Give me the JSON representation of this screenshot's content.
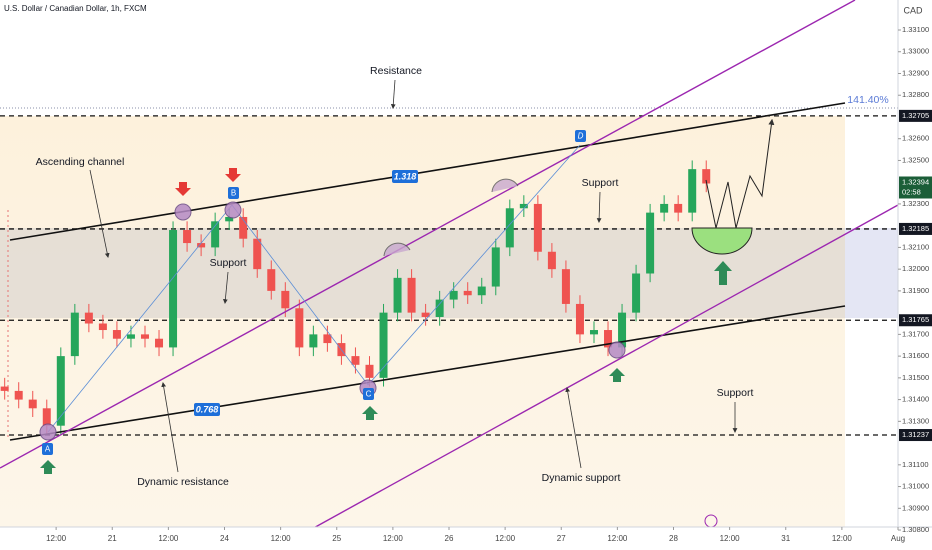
{
  "chart_data": {
    "type": "candlestick",
    "title": "U.S. Dollar / Canadian Dollar, 1h, FXCM",
    "currency": "CAD",
    "up_color": "#26a65b",
    "down_color": "#ef5350",
    "grid": false,
    "xlim": [
      0,
      192
    ],
    "xticks": [
      {
        "value": 12,
        "label": "12:00"
      },
      {
        "value": 24,
        "label": "21"
      },
      {
        "value": 36,
        "label": "12:00"
      },
      {
        "value": 48,
        "label": "24"
      },
      {
        "value": 60,
        "label": "12:00"
      },
      {
        "value": 72,
        "label": "25"
      },
      {
        "value": 84,
        "label": "12:00"
      },
      {
        "value": 96,
        "label": "26"
      },
      {
        "value": 108,
        "label": "12:00"
      },
      {
        "value": 120,
        "label": "27"
      },
      {
        "value": 132,
        "label": "12:00"
      },
      {
        "value": 144,
        "label": "28"
      },
      {
        "value": 156,
        "label": "12:00"
      },
      {
        "value": 168,
        "label": "31"
      },
      {
        "value": 180,
        "label": "12:00"
      },
      {
        "value": 192,
        "label": "Aug"
      }
    ],
    "ylim": [
      1.30814,
      1.33238
    ],
    "yticks": [
      {
        "value": 1.331,
        "label": "1.33100"
      },
      {
        "value": 1.33,
        "label": "1.33000"
      },
      {
        "value": 1.329,
        "label": "1.32900"
      },
      {
        "value": 1.328,
        "label": "1.32800"
      },
      {
        "value": 1.326,
        "label": "1.32600"
      },
      {
        "value": 1.325,
        "label": "1.32500"
      },
      {
        "value": 1.323,
        "label": "1.32300"
      },
      {
        "value": 1.321,
        "label": "1.32100"
      },
      {
        "value": 1.32,
        "label": "1.32000"
      },
      {
        "value": 1.319,
        "label": "1.31900"
      },
      {
        "value": 1.317,
        "label": "1.31700"
      },
      {
        "value": 1.316,
        "label": "1.31600"
      },
      {
        "value": 1.315,
        "label": "1.31500"
      },
      {
        "value": 1.314,
        "label": "1.31400"
      },
      {
        "value": 1.313,
        "label": "1.31300"
      },
      {
        "value": 1.311,
        "label": "1.31100"
      },
      {
        "value": 1.31,
        "label": "1.31000"
      },
      {
        "value": 1.309,
        "label": "1.30900"
      },
      {
        "value": 1.308,
        "label": "1.30800"
      }
    ],
    "x": [
      1,
      4,
      7,
      10,
      13,
      16,
      19,
      22,
      25,
      28,
      31,
      34,
      37,
      40,
      43,
      46,
      49,
      52,
      55,
      58,
      61,
      64,
      67,
      70,
      73,
      76,
      79,
      82,
      85,
      88,
      91,
      94,
      97,
      100,
      103,
      106,
      109,
      112,
      115,
      118,
      121,
      124,
      127,
      130,
      133,
      136,
      139,
      142,
      145,
      148,
      151
    ],
    "ohlc": [
      [
        1.3146,
        1.315,
        1.314,
        1.3144
      ],
      [
        1.3144,
        1.3148,
        1.3136,
        1.314
      ],
      [
        1.314,
        1.3144,
        1.3132,
        1.3136
      ],
      [
        1.3136,
        1.314,
        1.3124,
        1.3128
      ],
      [
        1.3128,
        1.3164,
        1.3124,
        1.316
      ],
      [
        1.316,
        1.3184,
        1.3156,
        1.318
      ],
      [
        1.318,
        1.3184,
        1.3171,
        1.3175
      ],
      [
        1.3175,
        1.3179,
        1.3168,
        1.3172
      ],
      [
        1.3172,
        1.3176,
        1.3164,
        1.3168
      ],
      [
        1.3168,
        1.3174,
        1.3164,
        1.317
      ],
      [
        1.317,
        1.3174,
        1.3164,
        1.3168
      ],
      [
        1.3168,
        1.3172,
        1.316,
        1.3164
      ],
      [
        1.3164,
        1.3222,
        1.316,
        1.3218
      ],
      [
        1.3218,
        1.3222,
        1.3208,
        1.3212
      ],
      [
        1.3212,
        1.3216,
        1.3206,
        1.321
      ],
      [
        1.321,
        1.3226,
        1.3206,
        1.3222
      ],
      [
        1.3222,
        1.3228,
        1.3218,
        1.3224
      ],
      [
        1.3224,
        1.3228,
        1.321,
        1.3214
      ],
      [
        1.3214,
        1.3218,
        1.3196,
        1.32
      ],
      [
        1.32,
        1.3204,
        1.3186,
        1.319
      ],
      [
        1.319,
        1.3194,
        1.3178,
        1.3182
      ],
      [
        1.3182,
        1.3186,
        1.316,
        1.3164
      ],
      [
        1.3164,
        1.3174,
        1.316,
        1.317
      ],
      [
        1.317,
        1.3174,
        1.3162,
        1.3166
      ],
      [
        1.3166,
        1.317,
        1.3156,
        1.316
      ],
      [
        1.316,
        1.3164,
        1.3152,
        1.3156
      ],
      [
        1.3156,
        1.316,
        1.3146,
        1.315
      ],
      [
        1.315,
        1.3184,
        1.3146,
        1.318
      ],
      [
        1.318,
        1.32,
        1.3176,
        1.3196
      ],
      [
        1.3196,
        1.32,
        1.3176,
        1.318
      ],
      [
        1.318,
        1.3184,
        1.3174,
        1.3178
      ],
      [
        1.3178,
        1.319,
        1.3174,
        1.3186
      ],
      [
        1.3186,
        1.3194,
        1.3182,
        1.319
      ],
      [
        1.319,
        1.3194,
        1.3184,
        1.3188
      ],
      [
        1.3188,
        1.3196,
        1.3184,
        1.3192
      ],
      [
        1.3192,
        1.3214,
        1.3188,
        1.321
      ],
      [
        1.321,
        1.3232,
        1.3206,
        1.3228
      ],
      [
        1.3228,
        1.3234,
        1.3224,
        1.323
      ],
      [
        1.323,
        1.3234,
        1.3204,
        1.3208
      ],
      [
        1.3208,
        1.3212,
        1.3196,
        1.32
      ],
      [
        1.32,
        1.3204,
        1.318,
        1.3184
      ],
      [
        1.3184,
        1.3188,
        1.3166,
        1.317
      ],
      [
        1.317,
        1.3176,
        1.3166,
        1.3172
      ],
      [
        1.3172,
        1.3176,
        1.316,
        1.3164
      ],
      [
        1.3164,
        1.3184,
        1.316,
        1.318
      ],
      [
        1.318,
        1.3202,
        1.3176,
        1.3198
      ],
      [
        1.3198,
        1.323,
        1.3194,
        1.3226
      ],
      [
        1.3226,
        1.3234,
        1.3222,
        1.323
      ],
      [
        1.323,
        1.3234,
        1.3222,
        1.3226
      ],
      [
        1.3226,
        1.325,
        1.3222,
        1.3246
      ],
      [
        1.3246,
        1.325,
        1.32354,
        1.32394
      ]
    ],
    "levels": [
      {
        "value": 1.32705,
        "label": "1.32705"
      },
      {
        "value": 1.32185,
        "label": "1.32185"
      },
      {
        "value": 1.31765,
        "label": "1.31765"
      },
      {
        "value": 1.31237,
        "label": "1.31237"
      }
    ],
    "last_price": {
      "value": 1.32394,
      "label": "1.32394"
    },
    "countdown": "02:58",
    "annotations": {
      "resistance": "Resistance",
      "fib_extension": "141.40%",
      "ascending_channel": "Ascending channel",
      "support_mid": "Support",
      "support_upper": "Support",
      "support_lower": "Support",
      "dynamic_resistance": "Dynamic resistance",
      "dynamic_support": "Dynamic support",
      "ratio_upper": "1.318",
      "ratio_lower": "0.768",
      "points": [
        "A",
        "B",
        "C",
        "D"
      ]
    }
  }
}
